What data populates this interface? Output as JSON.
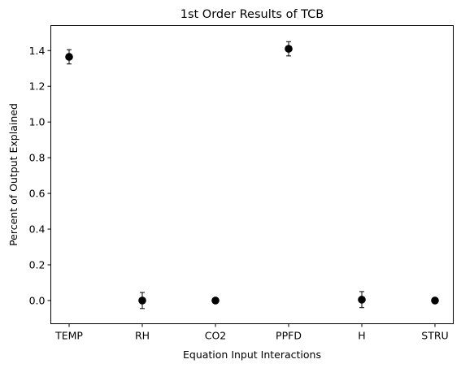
{
  "chart_data": {
    "type": "scatter",
    "title": "1st Order Results of TCB",
    "xlabel": "Equation Input Interactions",
    "ylabel": "Percent of Output Explained",
    "categories": [
      "TEMP",
      "RH",
      "CO2",
      "PPFD",
      "H",
      "STRU"
    ],
    "values": [
      1.365,
      0.0,
      0.0,
      1.41,
      0.005,
      0.0
    ],
    "errors": [
      0.04,
      0.045,
      0.0,
      0.04,
      0.045,
      0.0
    ],
    "ylim": [
      -0.13,
      1.54
    ],
    "yticks": [
      0.0,
      0.2,
      0.4,
      0.6,
      0.8,
      1.0,
      1.2,
      1.4
    ],
    "yticklabels": [
      "0.0",
      "0.2",
      "0.4",
      "0.6",
      "0.8",
      "1.0",
      "1.2",
      "1.4"
    ],
    "grid": false,
    "marker_color": "#000000"
  }
}
